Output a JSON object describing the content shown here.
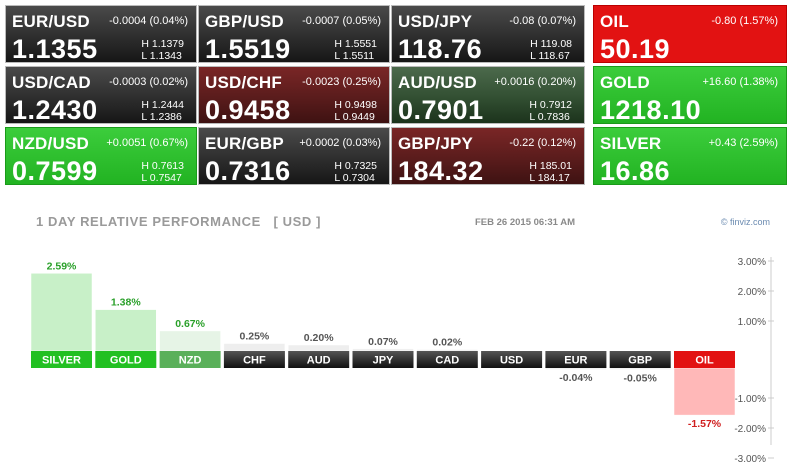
{
  "quotes": [
    {
      "symbol": "EUR/USD",
      "change": "-0.0004 (0.04%)",
      "price": "1.1355",
      "high": "H 1.1379",
      "low": "L 1.1343",
      "style": "neutral"
    },
    {
      "symbol": "GBP/USD",
      "change": "-0.0007 (0.05%)",
      "price": "1.5519",
      "high": "H 1.5551",
      "low": "L 1.5511",
      "style": "neutral"
    },
    {
      "symbol": "USD/JPY",
      "change": "-0.08 (0.07%)",
      "price": "118.76",
      "high": "H 119.08",
      "low": "L 118.67",
      "style": "neutral"
    },
    {
      "symbol": "OIL",
      "change": "-0.80 (1.57%)",
      "price": "50.19",
      "high": "",
      "low": "",
      "style": "comm-red"
    },
    {
      "symbol": "USD/CAD",
      "change": "-0.0003 (0.02%)",
      "price": "1.2430",
      "high": "H 1.2444",
      "low": "L 1.2386",
      "style": "neutral"
    },
    {
      "symbol": "USD/CHF",
      "change": "-0.0023 (0.25%)",
      "price": "0.9458",
      "high": "H 0.9498",
      "low": "L 0.9449",
      "style": "dnred"
    },
    {
      "symbol": "AUD/USD",
      "change": "+0.0016 (0.20%)",
      "price": "0.7901",
      "high": "H 0.7912",
      "low": "L 0.7836",
      "style": "upgreen"
    },
    {
      "symbol": "GOLD",
      "change": "+16.60 (1.38%)",
      "price": "1218.10",
      "high": "",
      "low": "",
      "style": "comm-green"
    },
    {
      "symbol": "NZD/USD",
      "change": "+0.0051 (0.67%)",
      "price": "0.7599",
      "high": "H 0.7613",
      "low": "L 0.7547",
      "style": "comm-green"
    },
    {
      "symbol": "EUR/GBP",
      "change": "+0.0002 (0.03%)",
      "price": "0.7316",
      "high": "H 0.7325",
      "low": "L 0.7304",
      "style": "neutral"
    },
    {
      "symbol": "GBP/JPY",
      "change": "-0.22 (0.12%)",
      "price": "184.32",
      "high": "H 185.01",
      "low": "L 184.17",
      "style": "dnred"
    },
    {
      "symbol": "SILVER",
      "change": "+0.43 (2.59%)",
      "price": "16.86",
      "high": "",
      "low": "",
      "style": "comm-green"
    }
  ],
  "chart_data": {
    "type": "bar",
    "title": "1 DAY RELATIVE PERFORMANCE   [ USD ]",
    "date": "FEB 26 2015 06:31 AM",
    "source": "© finviz.com",
    "categories": [
      "SILVER",
      "GOLD",
      "NZD",
      "CHF",
      "AUD",
      "JPY",
      "CAD",
      "USD",
      "EUR",
      "GBP",
      "OIL"
    ],
    "values": [
      2.59,
      1.38,
      0.67,
      0.25,
      0.2,
      0.07,
      0.02,
      0.0,
      -0.04,
      -0.05,
      -1.57
    ],
    "value_labels": [
      "2.59%",
      "1.38%",
      "0.67%",
      "0.25%",
      "0.20%",
      "0.07%",
      "0.02%",
      "",
      "-0.04%",
      "-0.05%",
      "-1.57%"
    ],
    "ylim": [
      -3,
      3
    ],
    "yticks": [
      3,
      2,
      1,
      0,
      -1,
      -2,
      -3
    ],
    "ytick_labels": [
      "3.00%",
      "2.00%",
      "1.00%",
      "",
      "-1.00%",
      "-2.00%",
      "-3.00%"
    ],
    "grid": false,
    "legend": "none",
    "colors": {
      "positive_label": "#2aa02a",
      "negative_label": "#d02020",
      "neutral_label": "#555555",
      "bar_green_light": "#c8f0c8",
      "bar_green_pale": "#e6f4e6",
      "bar_gray": "#eeeeee",
      "bar_red_light": "#ffb8b8",
      "cat_green": "#22c022",
      "cat_green_pale": "#5ab05a",
      "cat_dark": "#2a2a2a",
      "cat_red": "#e21212"
    },
    "category_styles": [
      "green",
      "green",
      "green-pale",
      "dark",
      "dark",
      "dark",
      "dark",
      "dark",
      "dark",
      "dark",
      "red"
    ]
  }
}
